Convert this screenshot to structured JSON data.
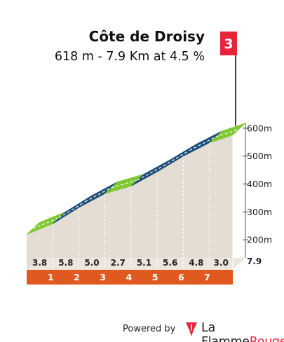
{
  "title": "Côte de Droisy",
  "subtitle": "618 m - 7.9 Km at 4.5 %",
  "category": "3",
  "footer": {
    "powered": "Powered by",
    "brand_la": "La ",
    "brand_flamme": "Flamme",
    "brand_rouge": "Rouge"
  },
  "colors": {
    "flag": "#e8243b",
    "green": "#7ec832",
    "blue": "#1f4e79",
    "wall": "#e4ddd3",
    "wall_side": "#b3aa9f",
    "base": "#e05a1f",
    "brand": "#e8243b"
  },
  "chart_data": {
    "type": "area",
    "title": "Côte de Droisy",
    "x_unit": "km",
    "y_unit": "m",
    "ylim": [
      135,
      618
    ],
    "y_ticks": [
      "200m",
      "300m",
      "400m",
      "500m",
      "600m"
    ],
    "y_tick_values": [
      200,
      300,
      400,
      500,
      600
    ],
    "km_markers": [
      "1",
      "2",
      "3",
      "4",
      "5",
      "6",
      "7"
    ],
    "end_label": "7.9",
    "x": [
      0,
      1,
      2,
      3,
      4,
      5,
      6,
      7,
      7.9
    ],
    "elevation": [
      262,
      300,
      358,
      408,
      435,
      486,
      542,
      590,
      618
    ],
    "gradients": [
      "3.8",
      "5.8",
      "5.0",
      "2.7",
      "5.1",
      "5.6",
      "4.8",
      "3.0"
    ],
    "segment_colors": [
      "green",
      "blue",
      "blue",
      "green",
      "blue",
      "blue",
      "blue",
      "green"
    ]
  }
}
